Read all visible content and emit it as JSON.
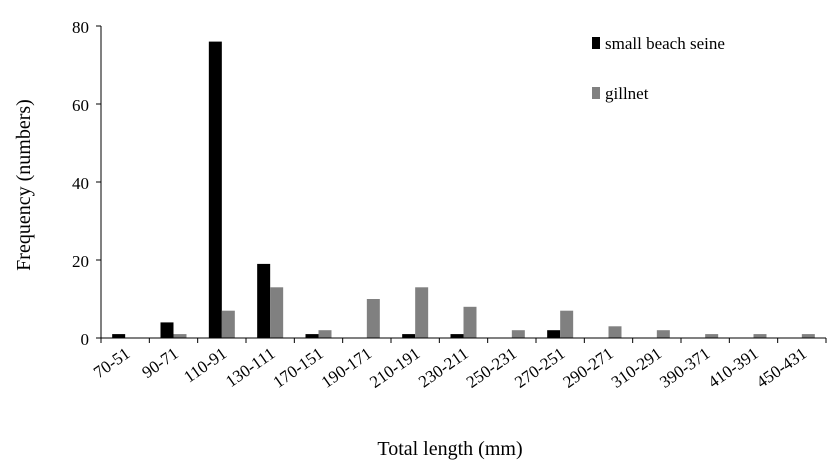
{
  "chart_data": {
    "type": "bar",
    "title": "",
    "xlabel": "Total length  (mm)",
    "ylabel": "Frequency  (numbers)",
    "ylim": [
      0,
      80
    ],
    "yticks": [
      0,
      20,
      40,
      60,
      80
    ],
    "grid": false,
    "legend_position": "top-right",
    "categories": [
      "70-51",
      "90-71",
      "110-91",
      "130-111",
      "170-151",
      "190-171",
      "210-191",
      "230-211",
      "250-231",
      "270-251",
      "290-271",
      "310-291",
      "390-371",
      "410-391",
      "450-431"
    ],
    "series": [
      {
        "name": "small beach seine",
        "color": "#000000",
        "values": [
          1,
          4,
          76,
          19,
          1,
          0,
          1,
          1,
          0,
          2,
          0,
          0,
          0,
          0,
          0
        ]
      },
      {
        "name": "gillnet",
        "color": "#808080",
        "values": [
          0,
          1,
          7,
          13,
          2,
          10,
          13,
          8,
          2,
          7,
          3,
          2,
          1,
          1,
          1
        ]
      }
    ]
  }
}
